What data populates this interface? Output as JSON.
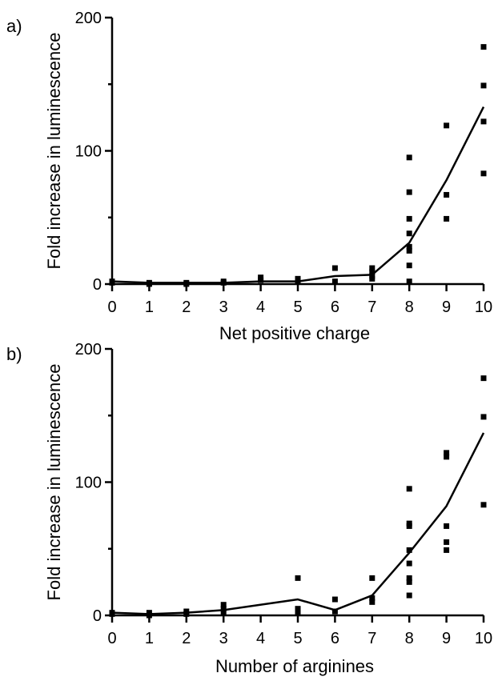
{
  "chart_data": [
    {
      "panel_label": "a)",
      "type": "scatter",
      "xlabel": "Net positive charge",
      "ylabel": "Fold increase in luminescence",
      "xlim": [
        0,
        10
      ],
      "ylim": [
        0,
        200
      ],
      "x_ticks": [
        0,
        1,
        2,
        3,
        4,
        5,
        6,
        7,
        8,
        9,
        10
      ],
      "y_ticks": [
        0,
        100,
        200
      ],
      "points": [
        {
          "x": 0,
          "y": 1
        },
        {
          "x": 0,
          "y": 2
        },
        {
          "x": 1,
          "y": 1
        },
        {
          "x": 1,
          "y": 0
        },
        {
          "x": 2,
          "y": 1
        },
        {
          "x": 2,
          "y": 0
        },
        {
          "x": 3,
          "y": 1
        },
        {
          "x": 3,
          "y": 2
        },
        {
          "x": 4,
          "y": 3
        },
        {
          "x": 4,
          "y": 5
        },
        {
          "x": 5,
          "y": 2
        },
        {
          "x": 5,
          "y": 4
        },
        {
          "x": 6,
          "y": 12
        },
        {
          "x": 6,
          "y": 2
        },
        {
          "x": 7,
          "y": 4
        },
        {
          "x": 7,
          "y": 6
        },
        {
          "x": 7,
          "y": 9
        },
        {
          "x": 7,
          "y": 12
        },
        {
          "x": 8,
          "y": 95
        },
        {
          "x": 8,
          "y": 69
        },
        {
          "x": 8,
          "y": 49
        },
        {
          "x": 8,
          "y": 38
        },
        {
          "x": 8,
          "y": 28
        },
        {
          "x": 8,
          "y": 25
        },
        {
          "x": 8,
          "y": 14
        },
        {
          "x": 8,
          "y": 2
        },
        {
          "x": 9,
          "y": 119
        },
        {
          "x": 9,
          "y": 67
        },
        {
          "x": 9,
          "y": 49
        },
        {
          "x": 10,
          "y": 178
        },
        {
          "x": 10,
          "y": 149
        },
        {
          "x": 10,
          "y": 122
        },
        {
          "x": 10,
          "y": 83
        }
      ],
      "mean_line": {
        "x": [
          0,
          1,
          2,
          3,
          4,
          5,
          6,
          7,
          8,
          9,
          10
        ],
        "y": [
          2,
          1,
          1,
          1,
          2,
          2,
          6,
          7,
          31,
          78,
          133
        ]
      }
    },
    {
      "panel_label": "b)",
      "type": "scatter",
      "xlabel": "Number of arginines",
      "ylabel": "Fold increase in luminescence",
      "xlim": [
        0,
        10
      ],
      "ylim": [
        0,
        200
      ],
      "x_ticks": [
        0,
        1,
        2,
        3,
        4,
        5,
        6,
        7,
        8,
        9,
        10
      ],
      "y_ticks": [
        0,
        100,
        200
      ],
      "points": [
        {
          "x": 0,
          "y": 1
        },
        {
          "x": 0,
          "y": 2
        },
        {
          "x": 1,
          "y": 2
        },
        {
          "x": 1,
          "y": 0
        },
        {
          "x": 2,
          "y": 3
        },
        {
          "x": 2,
          "y": 1
        },
        {
          "x": 3,
          "y": 8
        },
        {
          "x": 3,
          "y": 5
        },
        {
          "x": 3,
          "y": 2
        },
        {
          "x": 5,
          "y": 28
        },
        {
          "x": 5,
          "y": 5
        },
        {
          "x": 5,
          "y": 2
        },
        {
          "x": 6,
          "y": 12
        },
        {
          "x": 6,
          "y": 3
        },
        {
          "x": 7,
          "y": 28
        },
        {
          "x": 7,
          "y": 13
        },
        {
          "x": 7,
          "y": 10
        },
        {
          "x": 8,
          "y": 95
        },
        {
          "x": 8,
          "y": 69
        },
        {
          "x": 8,
          "y": 67
        },
        {
          "x": 8,
          "y": 49
        },
        {
          "x": 8,
          "y": 39
        },
        {
          "x": 8,
          "y": 28
        },
        {
          "x": 8,
          "y": 25
        },
        {
          "x": 8,
          "y": 15
        },
        {
          "x": 9,
          "y": 122
        },
        {
          "x": 9,
          "y": 119
        },
        {
          "x": 9,
          "y": 67
        },
        {
          "x": 9,
          "y": 55
        },
        {
          "x": 9,
          "y": 49
        },
        {
          "x": 10,
          "y": 178
        },
        {
          "x": 10,
          "y": 149
        },
        {
          "x": 10,
          "y": 83
        }
      ],
      "mean_line": {
        "x": [
          0,
          1,
          2,
          3,
          5,
          6,
          7,
          8,
          9,
          10
        ],
        "y": [
          2,
          1,
          2,
          4,
          12,
          4,
          15,
          47,
          82,
          137
        ]
      }
    }
  ]
}
